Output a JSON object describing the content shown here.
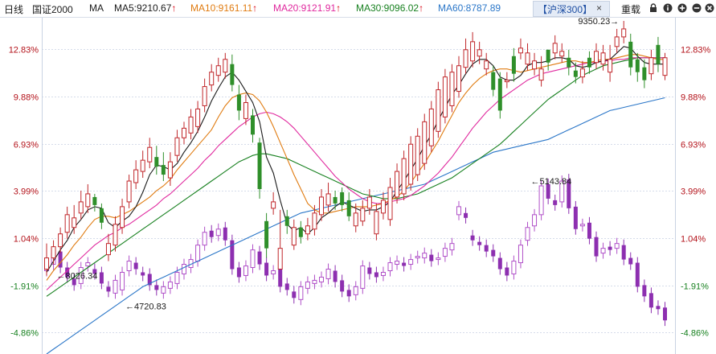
{
  "header": {
    "period": "日线",
    "index": "国证2000",
    "indicator": "MA",
    "ma": [
      {
        "label": "MA5:9210.67",
        "color": "#1a1a1a"
      },
      {
        "label": "MA10:9161.11",
        "color": "#e07b10"
      },
      {
        "label": "MA20:9121.91",
        "color": "#e0289e"
      },
      {
        "label": "MA30:9096.02",
        "color": "#17801f"
      },
      {
        "label": "MA60:8787.89",
        "color": "#2a76c8"
      }
    ],
    "arrow": "↑",
    "compare_tab": "【沪深300】",
    "close": "×",
    "overlay": "重载"
  },
  "chart_data": {
    "type": "candlestick",
    "y_ticks": [
      "12.83%",
      "9.88%",
      "6.93%",
      "3.99%",
      "1.04%",
      "-1.91%",
      "-4.86%"
    ],
    "y_tick_values": [
      12.83,
      9.88,
      6.93,
      3.99,
      1.04,
      -1.91,
      -4.86
    ],
    "y_range": [
      -6.2,
      14.8
    ],
    "up_color": "#c0262a",
    "down_color": "#2f8f2a",
    "compare_up_color": "#b050c8",
    "compare_down_color": "#8d2fb0",
    "main_open": [
      -0.9,
      -0.2,
      0.5,
      1.4,
      1.7,
      2.6,
      3.0,
      3.6,
      2.9,
      0.0,
      0.6,
      1.7,
      3.3,
      4.5,
      5.2,
      5.8,
      6.1,
      5.6,
      4.8,
      6.2,
      7.3,
      7.6,
      8.0,
      9.3,
      10.6,
      11.2,
      11.4,
      11.9,
      10.0,
      8.5,
      8.7,
      7.0,
      2.1,
      2.9,
      -0.9,
      2.4,
      0.6,
      1.7,
      1.3,
      1.6,
      2.5,
      3.1,
      3.6,
      3.9,
      3.4,
      1.8,
      2.1,
      2.9,
      1.3,
      2.6,
      2.2,
      3.6,
      3.8,
      4.4,
      5.0,
      5.7,
      6.8,
      7.7,
      8.6,
      9.3,
      10.2,
      11.7,
      12.1,
      12.4,
      11.6,
      11.4,
      11.0,
      10.8,
      12.4,
      12.6,
      11.9,
      11.6,
      10.9,
      12.8,
      12.6,
      12.4,
      12.3,
      11.5,
      11.1,
      12.3,
      12.0,
      11.9,
      11.4,
      13.0,
      13.6,
      13.3,
      12.2,
      11.7,
      11.3,
      13.1,
      11.2
    ],
    "main_close": [
      -0.2,
      0.5,
      1.3,
      2.5,
      2.3,
      3.3,
      3.8,
      3.1,
      2.0,
      0.7,
      1.9,
      3.0,
      4.6,
      5.3,
      5.9,
      6.7,
      5.5,
      5.0,
      5.8,
      7.3,
      7.9,
      8.6,
      9.1,
      10.5,
      11.4,
      11.8,
      12.2,
      10.6,
      9.0,
      9.5,
      7.5,
      4.1,
      0.4,
      3.3,
      0.4,
      1.8,
      1.7,
      1.1,
      1.8,
      2.6,
      3.6,
      3.8,
      3.2,
      3.1,
      2.4,
      2.6,
      2.9,
      3.6,
      2.7,
      3.4,
      4.2,
      5.2,
      6.0,
      6.9,
      7.4,
      8.3,
      9.1,
      10.3,
      11.1,
      11.4,
      11.8,
      12.8,
      13.3,
      12.8,
      12.1,
      10.3,
      9.0,
      10.9,
      11.3,
      12.9,
      12.6,
      12.1,
      11.6,
      12.0,
      13.2,
      12.7,
      11.7,
      11.1,
      11.6,
      11.7,
      12.7,
      12.6,
      12.2,
      13.6,
      14.1,
      11.7,
      11.4,
      10.9,
      12.3,
      11.9,
      12.3
    ],
    "main_high": [
      0.7,
      0.9,
      1.7,
      3.0,
      3.1,
      4.0,
      4.4,
      3.8,
      3.2,
      1.3,
      2.4,
      3.5,
      5.0,
      5.9,
      6.5,
      7.3,
      6.8,
      6.4,
      6.4,
      7.8,
      8.3,
      9.1,
      9.6,
      11.0,
      11.9,
      12.3,
      12.6,
      12.5,
      10.6,
      10.0,
      9.1,
      7.3,
      2.6,
      3.9,
      2.8,
      2.8,
      2.2,
      2.1,
      2.3,
      3.1,
      4.1,
      4.5,
      4.0,
      4.2,
      3.9,
      3.2,
      3.4,
      4.1,
      3.2,
      3.9,
      4.8,
      5.7,
      6.5,
      7.4,
      7.9,
      8.8,
      9.6,
      10.8,
      11.6,
      11.9,
      12.4,
      13.5,
      13.9,
      13.3,
      12.6,
      11.8,
      11.4,
      11.4,
      12.9,
      13.5,
      13.2,
      12.6,
      12.4,
      12.8,
      13.7,
      13.2,
      12.8,
      12.0,
      12.1,
      12.7,
      13.2,
      13.1,
      13.1,
      14.1,
      14.6,
      13.8,
      12.6,
      12.2,
      12.8,
      13.6,
      12.6
    ],
    "main_low": [
      -1.3,
      -0.6,
      0.1,
      1.0,
      1.3,
      2.2,
      2.6,
      2.7,
      1.6,
      -0.4,
      0.2,
      1.3,
      2.9,
      4.1,
      4.8,
      5.4,
      5.0,
      4.6,
      4.3,
      5.8,
      6.9,
      7.2,
      7.6,
      8.9,
      10.2,
      10.8,
      11.0,
      10.2,
      8.4,
      8.1,
      7.0,
      3.5,
      -0.2,
      2.5,
      -0.2,
      1.3,
      0.3,
      0.7,
      0.9,
      1.2,
      2.1,
      2.7,
      2.8,
      2.7,
      2.1,
      1.4,
      1.8,
      2.5,
      0.9,
      2.2,
      1.8,
      3.2,
      3.4,
      4.0,
      4.6,
      5.3,
      6.4,
      7.3,
      8.2,
      8.9,
      9.8,
      11.3,
      11.7,
      11.9,
      11.2,
      9.9,
      8.5,
      10.4,
      10.8,
      12.2,
      11.5,
      11.2,
      10.5,
      11.5,
      12.2,
      12.0,
      11.2,
      10.7,
      10.7,
      11.3,
      11.6,
      11.5,
      10.8,
      12.6,
      13.2,
      11.2,
      10.8,
      10.4,
      10.9,
      11.4,
      10.9
    ],
    "compare_open": [
      -1.0,
      -0.6,
      0.2,
      -0.8,
      -1.5,
      -1.8,
      -0.7,
      -0.9,
      -1.1,
      -2.0,
      -2.4,
      -2.2,
      -1.0,
      -0.5,
      -1.1,
      -1.2,
      -1.9,
      -2.4,
      -2.1,
      -1.8,
      -1.2,
      -0.8,
      -0.4,
      0.6,
      1.5,
      1.2,
      1.7,
      0.9,
      -0.8,
      -1.3,
      -0.8,
      0.2,
      -0.5,
      -1.2,
      -0.9,
      -1.8,
      -2.3,
      -2.8,
      -2.1,
      -1.8,
      -1.7,
      -1.5,
      -1.0,
      -1.6,
      -2.2,
      -2.5,
      -2.1,
      -0.8,
      -1.1,
      -1.3,
      -1.0,
      -0.6,
      -0.5,
      -0.6,
      -0.2,
      -0.2,
      0.0,
      -0.3,
      -0.1,
      0.3,
      2.5,
      2.6,
      1.2,
      0.8,
      0.6,
      0.3,
      -0.2,
      -0.8,
      -1.2,
      -0.5,
      0.9,
      1.8,
      2.5,
      4.4,
      3.4,
      3.3,
      4.7,
      3.0,
      1.8,
      2.0,
      1.1,
      0.1,
      0.5,
      0.4,
      0.6,
      -0.2,
      -0.5,
      -1.9,
      -2.4,
      -3.2,
      -3.3
    ],
    "compare_close": [
      -0.6,
      0.1,
      -0.8,
      -1.4,
      -1.9,
      -0.8,
      -0.5,
      -1.2,
      -1.8,
      -2.3,
      -1.6,
      -1.1,
      -0.4,
      -0.9,
      -1.3,
      -1.9,
      -2.2,
      -2.0,
      -1.7,
      -1.1,
      -0.6,
      -0.3,
      0.6,
      1.4,
      1.1,
      1.6,
      0.9,
      -0.9,
      -1.4,
      -0.7,
      0.3,
      -0.6,
      -1.3,
      -1.0,
      -2.0,
      -2.2,
      -2.7,
      -2.0,
      -1.7,
      -1.6,
      -1.4,
      -0.9,
      -1.7,
      -2.3,
      -2.6,
      -2.0,
      -0.7,
      -1.2,
      -1.4,
      -1.1,
      -0.5,
      -0.4,
      -0.7,
      -0.3,
      -0.1,
      0.1,
      -0.4,
      -0.2,
      0.4,
      0.7,
      3.0,
      2.3,
      0.9,
      0.6,
      0.2,
      -0.1,
      -0.9,
      -1.3,
      -0.4,
      0.6,
      1.7,
      2.5,
      4.3,
      3.5,
      3.1,
      4.6,
      2.9,
      1.6,
      1.9,
      1.0,
      -0.1,
      0.4,
      0.3,
      0.7,
      -0.3,
      -0.6,
      -2.0,
      -2.6,
      -3.3,
      -3.4,
      -4.1
    ],
    "ma5": [
      -1.1,
      -0.4,
      0.3,
      0.9,
      1.7,
      2.2,
      2.8,
      3.0,
      2.9,
      2.0,
      1.7,
      2.1,
      2.4,
      3.0,
      3.9,
      5.0,
      5.6,
      5.5,
      5.3,
      5.7,
      6.4,
      7.0,
      7.7,
      8.6,
      9.6,
      10.4,
      11.1,
      11.4,
      10.9,
      10.2,
      9.5,
      8.3,
      6.1,
      5.1,
      3.4,
      1.9,
      1.5,
      1.7,
      1.3,
      1.7,
      2.3,
      2.6,
      3.0,
      3.3,
      3.1,
      2.9,
      2.7,
      2.8,
      2.8,
      3.0,
      3.3,
      4.0,
      4.6,
      5.3,
      6.0,
      6.8,
      7.5,
      8.4,
      9.2,
      10.0,
      10.6,
      11.3,
      11.9,
      12.2,
      12.2,
      11.8,
      11.1,
      10.9,
      10.9,
      11.2,
      11.8,
      12.0,
      12.0,
      12.1,
      12.3,
      12.3,
      12.2,
      11.8,
      11.7,
      11.8,
      12.0,
      12.1,
      12.2,
      12.6,
      13.0,
      12.9,
      12.4,
      12.0,
      11.9,
      11.9,
      11.9
    ],
    "ma10": [
      -1.6,
      -1.0,
      -0.5,
      0.0,
      0.6,
      1.1,
      1.7,
      2.2,
      2.4,
      2.4,
      2.3,
      2.5,
      2.7,
      3.0,
      3.3,
      3.6,
      4.0,
      4.3,
      4.7,
      5.3,
      5.8,
      6.3,
      6.8,
      7.3,
      7.8,
      8.6,
      9.3,
      9.8,
      10.0,
      10.1,
      10.0,
      9.6,
      8.9,
      8.0,
      7.0,
      6.0,
      5.0,
      4.1,
      3.2,
      2.8,
      2.6,
      2.6,
      2.7,
      2.8,
      2.9,
      3.0,
      3.0,
      3.0,
      3.1,
      3.2,
      3.4,
      3.6,
      4.0,
      4.5,
      5.1,
      5.7,
      6.4,
      7.1,
      7.9,
      8.7,
      9.5,
      10.1,
      10.6,
      11.0,
      11.3,
      11.5,
      11.6,
      11.6,
      11.5,
      11.4,
      11.5,
      11.6,
      11.7,
      11.8,
      11.9,
      12.0,
      12.1,
      12.1,
      12.0,
      12.0,
      12.1,
      12.2,
      12.2,
      12.3,
      12.4,
      12.5,
      12.5,
      12.4,
      12.3,
      12.2,
      12.2
    ],
    "ma20": [
      -2.2,
      -1.8,
      -1.4,
      -1.0,
      -0.6,
      -0.2,
      0.2,
      0.6,
      0.9,
      1.2,
      1.4,
      1.7,
      1.9,
      2.2,
      2.5,
      2.8,
      3.1,
      3.5,
      3.8,
      4.2,
      4.6,
      5.0,
      5.4,
      5.9,
      6.3,
      6.8,
      7.2,
      7.6,
      8.0,
      8.3,
      8.6,
      8.8,
      8.9,
      8.8,
      8.6,
      8.3,
      7.9,
      7.4,
      6.9,
      6.4,
      5.9,
      5.4,
      4.9,
      4.5,
      4.1,
      3.8,
      3.5,
      3.3,
      3.2,
      3.2,
      3.3,
      3.4,
      3.5,
      3.7,
      4.0,
      4.3,
      4.7,
      5.1,
      5.6,
      6.1,
      6.7,
      7.3,
      7.9,
      8.4,
      8.9,
      9.3,
      9.7,
      10.0,
      10.3,
      10.6,
      10.9,
      11.1,
      11.3,
      11.4,
      11.5,
      11.6,
      11.7,
      11.8,
      11.9,
      12.0,
      12.0,
      12.1,
      12.1,
      12.2,
      12.2,
      12.3,
      12.3,
      12.3,
      12.3,
      12.3,
      12.3
    ],
    "ma30": [
      -2.6,
      -2.3,
      -2.0,
      -1.7,
      -1.4,
      -1.1,
      -0.8,
      -0.5,
      -0.2,
      0.1,
      0.4,
      0.7,
      1.0,
      1.3,
      1.6,
      1.9,
      2.2,
      2.5,
      2.8,
      3.1,
      3.4,
      3.7,
      4.0,
      4.3,
      4.6,
      4.9,
      5.2,
      5.5,
      5.8,
      6.0,
      6.2,
      6.3,
      6.3,
      6.2,
      6.1,
      6.0,
      5.8,
      5.6,
      5.4,
      5.2,
      5.0,
      4.8,
      4.6,
      4.4,
      4.2,
      4.0,
      3.8,
      3.7,
      3.6,
      3.5,
      3.5,
      3.5,
      3.6,
      3.7,
      3.8,
      4.0,
      4.2,
      4.4,
      4.6,
      4.8,
      5.1,
      5.4,
      5.7,
      6.0,
      6.3,
      6.6,
      6.9,
      7.3,
      7.7,
      8.1,
      8.5,
      8.9,
      9.3,
      9.7,
      10.0,
      10.3,
      10.6,
      10.9,
      11.2,
      11.4,
      11.6,
      11.8,
      11.9,
      12.0,
      12.1,
      12.2,
      12.3,
      12.3,
      12.3,
      12.3,
      12.3
    ],
    "ma60": [
      -6.2,
      -5.9,
      -5.6,
      -5.3,
      -5.0,
      -4.7,
      -4.4,
      -4.1,
      -3.8,
      -3.5,
      -3.2,
      -2.9,
      -2.6,
      -2.3,
      -2.0,
      -1.8,
      -1.6,
      -1.4,
      -1.2,
      -1.0,
      -0.8,
      -0.6,
      -0.4,
      -0.2,
      0.0,
      0.2,
      0.4,
      0.6,
      0.8,
      1.0,
      1.2,
      1.4,
      1.6,
      1.8,
      2.0,
      2.2,
      2.4,
      2.6,
      2.7,
      2.8,
      2.9,
      3.0,
      3.1,
      3.2,
      3.3,
      3.4,
      3.5,
      3.6,
      3.7,
      3.8,
      3.9,
      4.0,
      4.1,
      4.2,
      4.3,
      4.4,
      4.6,
      4.8,
      5.0,
      5.2,
      5.4,
      5.6,
      5.8,
      6.0,
      6.2,
      6.4,
      6.5,
      6.6,
      6.7,
      6.8,
      6.9,
      7.0,
      7.1,
      7.2,
      7.4,
      7.6,
      7.8,
      8.0,
      8.2,
      8.4,
      8.6,
      8.8,
      9.0,
      9.1,
      9.2,
      9.3,
      9.4,
      9.5,
      9.6,
      9.7,
      9.8
    ],
    "annotations": [
      {
        "label": "9350.23",
        "index": 84,
        "value": 14.6,
        "side": "left"
      },
      {
        "label": "8026.34",
        "index": 1,
        "value": -1.3,
        "side": "right"
      },
      {
        "label": "4720.83",
        "index": 11,
        "value": -3.2,
        "side": "right"
      },
      {
        "label": "5143.84",
        "index": 70,
        "value": 4.6,
        "side": "right"
      }
    ]
  }
}
